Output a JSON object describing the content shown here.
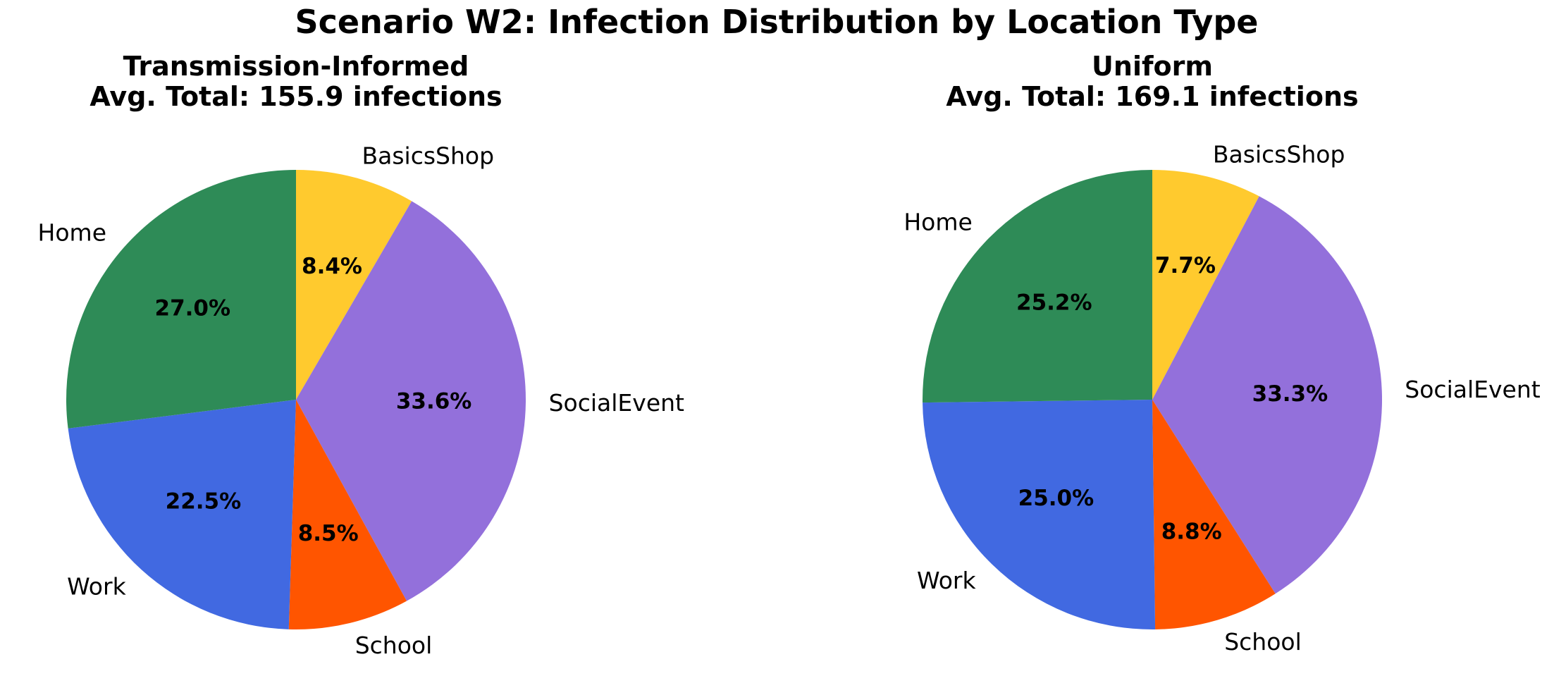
{
  "figure": {
    "suptitle": "Scenario W2: Infection Distribution by Location Type"
  },
  "chart_data": [
    {
      "type": "pie",
      "title": "Transmission-Informed",
      "subtitle": "Avg. Total: 155.9 infections",
      "start_angle_deg": 90,
      "direction": "clockwise",
      "labels": [
        "BasicsShop",
        "SocialEvent",
        "School",
        "Work",
        "Home"
      ],
      "values": [
        8.4,
        33.6,
        8.5,
        22.5,
        27.0
      ],
      "percent_labels": [
        "8.4%",
        "33.6%",
        "8.5%",
        "22.5%",
        "27.0%"
      ],
      "colors": [
        "#FFCA2E",
        "#9370DB",
        "#FF5500",
        "#4169E1",
        "#2E8B57"
      ]
    },
    {
      "type": "pie",
      "title": "Uniform",
      "subtitle": "Avg. Total: 169.1 infections",
      "start_angle_deg": 90,
      "direction": "clockwise",
      "labels": [
        "BasicsShop",
        "SocialEvent",
        "School",
        "Work",
        "Home"
      ],
      "values": [
        7.7,
        33.3,
        8.8,
        25.0,
        25.2
      ],
      "percent_labels": [
        "7.7%",
        "33.3%",
        "8.8%",
        "25.0%",
        "25.2%"
      ],
      "colors": [
        "#FFCA2E",
        "#9370DB",
        "#FF5500",
        "#4169E1",
        "#2E8B57"
      ]
    }
  ]
}
